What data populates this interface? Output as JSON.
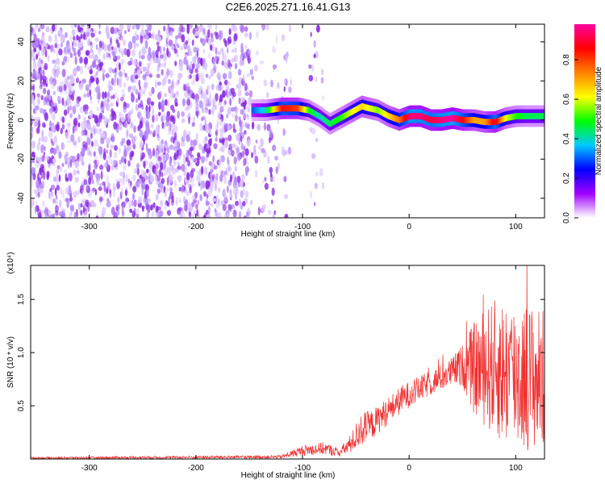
{
  "chart_data": [
    {
      "type": "heatmap",
      "title": "C2E6.2025.271.16.41.G13",
      "xlabel": "Height of straight line (km)",
      "ylabel": "Frequency (Hz)",
      "xlim": [
        -355,
        127
      ],
      "ylim": [
        -50,
        49
      ],
      "xticks": [
        -300,
        -200,
        -100,
        0,
        100
      ],
      "xtick_labels": [
        "-300",
        "-200",
        "-100",
        "0",
        "100"
      ],
      "yticks": [
        -40,
        -20,
        0,
        20,
        40
      ],
      "ytick_labels": [
        "-40",
        "-20",
        "0",
        "20",
        "40"
      ],
      "colorbar": {
        "label": "Normalized spectral amplitude",
        "range": [
          0,
          0.98
        ],
        "ticks": [
          0.0,
          0.2,
          0.4,
          0.6,
          0.8
        ],
        "tick_labels": [
          "0.0",
          "0.2",
          "0.4",
          "0.6",
          "0.8"
        ],
        "stops": [
          "#ffffff",
          "#a000ff",
          "#0000ff",
          "#00c8ff",
          "#00ff00",
          "#ffff00",
          "#ff8000",
          "#ff0000",
          "#ff00a0"
        ]
      },
      "noise_region": {
        "x_range": [
          -355,
          -80
        ],
        "amplitude_range": [
          0.0,
          0.15
        ]
      },
      "ridge": {
        "x": [
          -148,
          -135,
          -120,
          -105,
          -95,
          -85,
          -75,
          -65,
          -55,
          -45,
          -38,
          -30,
          -20,
          -10,
          0,
          10,
          20,
          30,
          40,
          50,
          60,
          70,
          80,
          90,
          100,
          110,
          120,
          127
        ],
        "y": [
          5,
          5,
          6,
          6,
          5,
          2,
          -2,
          1,
          4,
          7,
          6,
          5,
          2,
          0,
          2,
          2,
          0,
          0,
          1,
          0,
          0,
          -1,
          -1,
          1,
          2,
          2,
          2,
          2
        ],
        "amplitude": [
          0.3,
          0.4,
          0.85,
          0.8,
          0.5,
          0.4,
          0.45,
          0.5,
          0.6,
          0.65,
          0.6,
          0.55,
          0.65,
          0.75,
          0.95,
          0.95,
          0.9,
          0.95,
          0.98,
          0.85,
          0.7,
          0.7,
          0.9,
          0.6,
          0.5,
          0.45,
          0.45,
          0.45
        ]
      }
    },
    {
      "type": "line",
      "xlabel": "Height of straight line (km)",
      "ylabel": "SNR (10 * v/v)",
      "y_scale_label": "(x10⁴)",
      "xlim": [
        -355,
        127
      ],
      "ylim": [
        0,
        1.82
      ],
      "xticks": [
        -300,
        -200,
        -100,
        0,
        100
      ],
      "xtick_labels": [
        "-300",
        "-200",
        "-100",
        "0",
        "100"
      ],
      "yticks": [
        0.5,
        1.0,
        1.5
      ],
      "ytick_labels": [
        "0.5",
        "1.0",
        "1.5"
      ],
      "color": "#f03030",
      "envelope": {
        "x": [
          -355,
          -120,
          -100,
          -80,
          -65,
          -55,
          -45,
          -35,
          -20,
          -5,
          10,
          25,
          40,
          50,
          60,
          70,
          80,
          90,
          100,
          110,
          120,
          127
        ],
        "level": [
          0.01,
          0.02,
          0.08,
          0.1,
          0.06,
          0.14,
          0.28,
          0.32,
          0.45,
          0.58,
          0.66,
          0.74,
          0.82,
          0.88,
          0.85,
          0.86,
          0.85,
          0.82,
          0.8,
          0.78,
          0.76,
          0.75
        ],
        "spread": [
          0.01,
          0.015,
          0.05,
          0.06,
          0.04,
          0.09,
          0.16,
          0.14,
          0.13,
          0.13,
          0.12,
          0.12,
          0.14,
          0.2,
          0.42,
          0.55,
          0.65,
          0.7,
          0.72,
          0.7,
          0.68,
          0.66
        ]
      }
    }
  ]
}
